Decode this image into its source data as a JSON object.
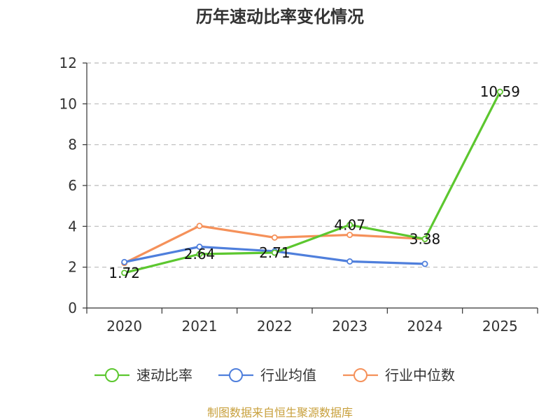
{
  "chart_data": {
    "type": "line",
    "title": "历年速动比率变化情况",
    "categories": [
      "2020",
      "2021",
      "2022",
      "2023",
      "2024",
      "2025"
    ],
    "ylim": [
      0,
      12
    ],
    "yticks": [
      0,
      2,
      4,
      6,
      8,
      10,
      12
    ],
    "grid": true,
    "legend_position": "bottom",
    "series": [
      {
        "name": "速动比率",
        "color": "#5cc72f",
        "values": [
          1.72,
          2.64,
          2.71,
          4.07,
          3.38,
          10.59
        ],
        "labels": [
          "1.72",
          "2.64",
          "2.71",
          "4.07",
          "3.38",
          "10.59"
        ]
      },
      {
        "name": "行业均值",
        "color": "#4f7fdc",
        "values": [
          2.25,
          3.0,
          2.78,
          2.28,
          2.16,
          null
        ]
      },
      {
        "name": "行业中位数",
        "color": "#f5915a",
        "values": [
          2.2,
          4.02,
          3.45,
          3.58,
          3.38,
          null
        ]
      }
    ]
  },
  "footer": {
    "source": "制图数据来自恒生聚源数据库"
  }
}
